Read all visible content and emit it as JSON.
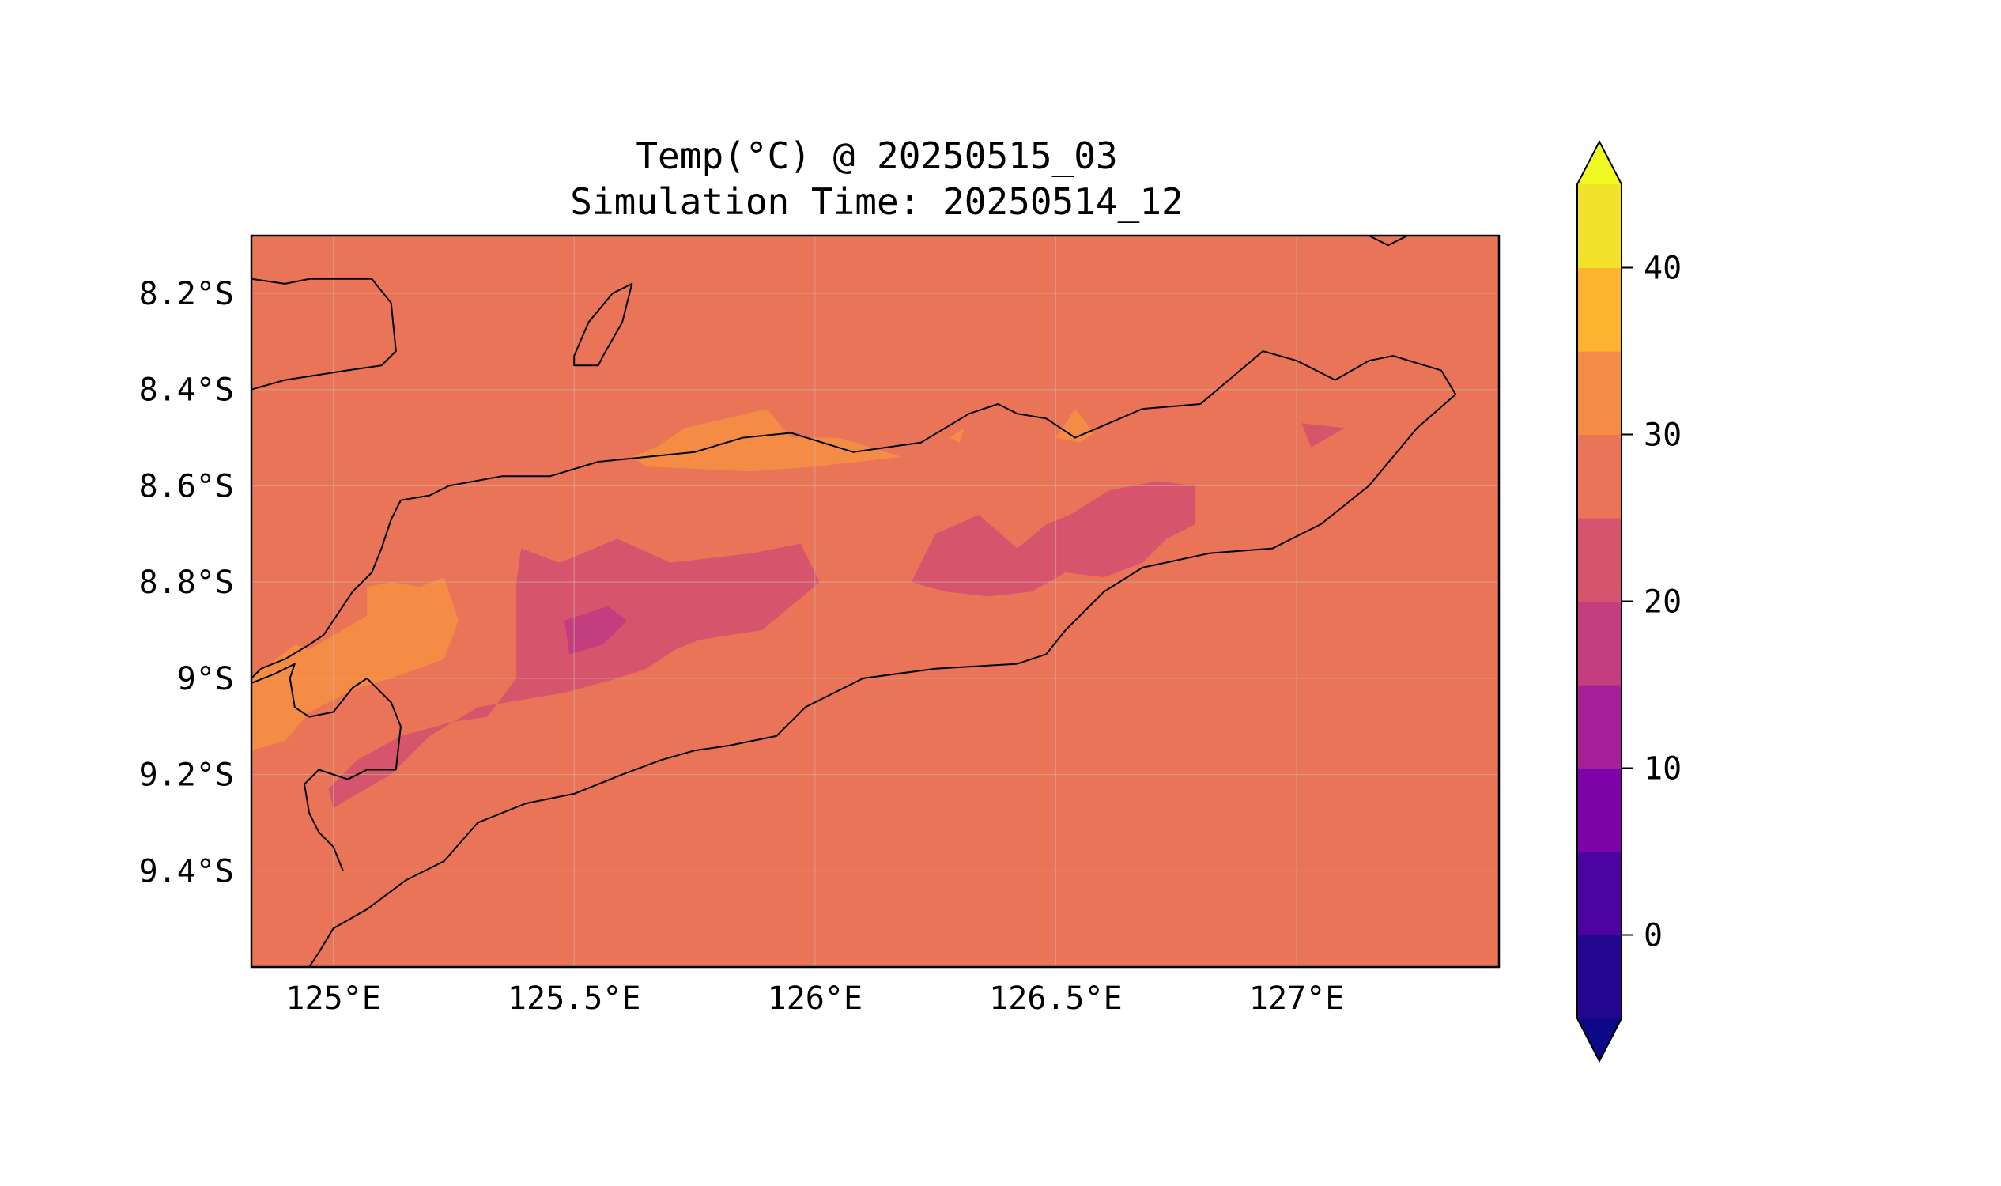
{
  "title": {
    "line1": "Temp(°C) @ 20250515_03",
    "line2": "Simulation Time: 20250514_12"
  },
  "chart_data": {
    "type": "heatmap",
    "variable": "Temp(°C)",
    "valid_time": "20250515_03",
    "simulation_time": "20250514_12",
    "xlim": [
      124.83,
      127.42
    ],
    "ylim": [
      -9.6,
      -8.08
    ],
    "x_ticks": [
      {
        "value": 125.0,
        "label": "125°E"
      },
      {
        "value": 125.5,
        "label": "125.5°E"
      },
      {
        "value": 126.0,
        "label": "126°E"
      },
      {
        "value": 126.5,
        "label": "126.5°E"
      },
      {
        "value": 127.0,
        "label": "127°E"
      }
    ],
    "y_ticks": [
      {
        "value": -8.2,
        "label": "8.2°S"
      },
      {
        "value": -8.4,
        "label": "8.4°S"
      },
      {
        "value": -8.6,
        "label": "8.6°S"
      },
      {
        "value": -8.8,
        "label": "8.8°S"
      },
      {
        "value": -9.0,
        "label": "9°S"
      },
      {
        "value": -9.2,
        "label": "9.2°S"
      },
      {
        "value": -9.4,
        "label": "9.4°S"
      }
    ],
    "grid": true,
    "colorbar": {
      "levels": [
        -5,
        0,
        5,
        10,
        15,
        20,
        25,
        30,
        35,
        40,
        45
      ],
      "colors": [
        "#220690",
        "#4b03a1",
        "#7d03a8",
        "#a51f99",
        "#c43e7f",
        "#d6556d",
        "#ea7457",
        "#f58c46",
        "#fdb32f",
        "#f2e229"
      ],
      "extend_low_color": "#0d0887",
      "extend_high_color": "#f0f921",
      "ticks": [
        {
          "value": 0,
          "label": "0"
        },
        {
          "value": 10,
          "label": "10"
        },
        {
          "value": 20,
          "label": "20"
        },
        {
          "value": 30,
          "label": "30"
        },
        {
          "value": 40,
          "label": "40"
        }
      ],
      "extend": "both"
    },
    "background_level_color": "#ea7457",
    "regions": [
      {
        "level": "30-35",
        "color": "#f58c46",
        "points": [
          [
            124.83,
            -9.0
          ],
          [
            124.92,
            -8.93
          ],
          [
            124.95,
            -8.94
          ],
          [
            125.07,
            -8.87
          ],
          [
            125.07,
            -8.81
          ],
          [
            125.12,
            -8.8
          ],
          [
            125.18,
            -8.81
          ],
          [
            125.23,
            -8.79
          ],
          [
            125.26,
            -8.88
          ],
          [
            125.23,
            -8.96
          ],
          [
            125.12,
            -9.0
          ],
          [
            125.05,
            -9.02
          ],
          [
            124.95,
            -9.07
          ],
          [
            124.9,
            -9.13
          ],
          [
            124.83,
            -9.15
          ]
        ]
      },
      {
        "level": "30-35",
        "color": "#f58c46",
        "points": [
          [
            125.67,
            -8.52
          ],
          [
            125.73,
            -8.48
          ],
          [
            125.9,
            -8.44
          ],
          [
            125.95,
            -8.5
          ],
          [
            126.05,
            -8.5
          ],
          [
            126.18,
            -8.54
          ],
          [
            126.0,
            -8.56
          ],
          [
            125.87,
            -8.57
          ],
          [
            125.65,
            -8.56
          ],
          [
            125.62,
            -8.54
          ]
        ]
      },
      {
        "level": "30-35",
        "color": "#f58c46",
        "points": [
          [
            126.5,
            -8.5
          ],
          [
            126.54,
            -8.44
          ],
          [
            126.58,
            -8.49
          ],
          [
            126.55,
            -8.51
          ]
        ]
      },
      {
        "level": "30-35",
        "color": "#f58c46",
        "points": [
          [
            126.28,
            -8.5
          ],
          [
            126.31,
            -8.48
          ],
          [
            126.3,
            -8.51
          ]
        ]
      },
      {
        "level": "20-25",
        "color": "#d6556d",
        "points": [
          [
            125.39,
            -8.73
          ],
          [
            125.47,
            -8.76
          ],
          [
            125.59,
            -8.71
          ],
          [
            125.7,
            -8.76
          ],
          [
            125.87,
            -8.74
          ],
          [
            125.97,
            -8.72
          ],
          [
            126.01,
            -8.8
          ],
          [
            125.95,
            -8.85
          ],
          [
            125.89,
            -8.9
          ],
          [
            125.76,
            -8.92
          ],
          [
            125.71,
            -8.94
          ],
          [
            125.65,
            -8.98
          ],
          [
            125.59,
            -9.0
          ],
          [
            125.48,
            -9.03
          ],
          [
            125.3,
            -9.06
          ],
          [
            125.2,
            -9.12
          ],
          [
            125.12,
            -9.2
          ],
          [
            125.05,
            -9.24
          ],
          [
            125.0,
            -9.27
          ],
          [
            124.99,
            -9.23
          ],
          [
            125.05,
            -9.17
          ],
          [
            125.14,
            -9.12
          ],
          [
            125.25,
            -9.09
          ],
          [
            125.32,
            -9.08
          ],
          [
            125.38,
            -9.0
          ],
          [
            125.38,
            -8.9
          ],
          [
            125.38,
            -8.8
          ]
        ]
      },
      {
        "level": "20-25",
        "color": "#d6556d",
        "points": [
          [
            126.2,
            -8.8
          ],
          [
            126.25,
            -8.7
          ],
          [
            126.34,
            -8.66
          ],
          [
            126.42,
            -8.73
          ],
          [
            126.48,
            -8.68
          ],
          [
            126.53,
            -8.66
          ],
          [
            126.61,
            -8.61
          ],
          [
            126.71,
            -8.59
          ],
          [
            126.79,
            -8.6
          ],
          [
            126.79,
            -8.68
          ],
          [
            126.73,
            -8.71
          ],
          [
            126.68,
            -8.76
          ],
          [
            126.6,
            -8.79
          ],
          [
            126.52,
            -8.78
          ],
          [
            126.45,
            -8.82
          ],
          [
            126.36,
            -8.83
          ],
          [
            126.27,
            -8.82
          ]
        ]
      },
      {
        "level": "20-25",
        "color": "#d6556d",
        "points": [
          [
            127.01,
            -8.47
          ],
          [
            127.1,
            -8.48
          ],
          [
            127.03,
            -8.52
          ]
        ]
      },
      {
        "level": "15-20",
        "color": "#c43e7f",
        "points": [
          [
            125.48,
            -8.88
          ],
          [
            125.57,
            -8.85
          ],
          [
            125.61,
            -8.88
          ],
          [
            125.56,
            -8.93
          ],
          [
            125.49,
            -8.95
          ]
        ]
      }
    ],
    "coastlines": [
      [
        [
          124.83,
          -8.17
        ],
        [
          124.9,
          -8.18
        ],
        [
          124.95,
          -8.17
        ],
        [
          125.0,
          -8.17
        ],
        [
          125.08,
          -8.17
        ],
        [
          125.12,
          -8.22
        ],
        [
          125.13,
          -8.32
        ],
        [
          125.1,
          -8.35
        ],
        [
          125.03,
          -8.36
        ],
        [
          124.9,
          -8.38
        ],
        [
          124.83,
          -8.4
        ]
      ],
      [
        [
          125.5,
          -8.33
        ],
        [
          125.53,
          -8.26
        ],
        [
          125.58,
          -8.2
        ],
        [
          125.62,
          -8.18
        ],
        [
          125.6,
          -8.26
        ],
        [
          125.56,
          -8.33
        ],
        [
          125.55,
          -8.35
        ],
        [
          125.5,
          -8.35
        ],
        [
          125.5,
          -8.33
        ]
      ],
      [
        [
          127.15,
          -8.08
        ],
        [
          127.19,
          -8.1
        ],
        [
          127.23,
          -8.08
        ]
      ],
      [
        [
          125.02,
          -9.4
        ],
        [
          125.0,
          -9.35
        ],
        [
          124.97,
          -9.32
        ],
        [
          124.95,
          -9.28
        ],
        [
          124.94,
          -9.22
        ],
        [
          124.97,
          -9.19
        ],
        [
          125.03,
          -9.21
        ],
        [
          125.07,
          -9.19
        ],
        [
          125.13,
          -9.19
        ],
        [
          125.14,
          -9.1
        ],
        [
          125.12,
          -9.05
        ],
        [
          125.07,
          -9.0
        ],
        [
          125.04,
          -9.02
        ],
        [
          125.0,
          -9.07
        ],
        [
          124.95,
          -9.08
        ],
        [
          124.92,
          -9.06
        ],
        [
          124.91,
          -9.0
        ],
        [
          124.92,
          -8.97
        ],
        [
          124.88,
          -8.99
        ],
        [
          124.83,
          -9.01
        ]
      ],
      [
        [
          125.08,
          -8.78
        ],
        [
          125.1,
          -8.73
        ],
        [
          125.12,
          -8.67
        ],
        [
          125.14,
          -8.63
        ],
        [
          125.2,
          -8.62
        ],
        [
          125.24,
          -8.6
        ],
        [
          125.35,
          -8.58
        ],
        [
          125.45,
          -8.58
        ],
        [
          125.55,
          -8.55
        ],
        [
          125.65,
          -8.54
        ],
        [
          125.75,
          -8.53
        ],
        [
          125.85,
          -8.5
        ],
        [
          125.95,
          -8.49
        ],
        [
          126.08,
          -8.53
        ],
        [
          126.22,
          -8.51
        ],
        [
          126.32,
          -8.45
        ],
        [
          126.38,
          -8.43
        ],
        [
          126.42,
          -8.45
        ],
        [
          126.48,
          -8.46
        ],
        [
          126.54,
          -8.5
        ],
        [
          126.68,
          -8.44
        ],
        [
          126.8,
          -8.43
        ],
        [
          126.93,
          -8.32
        ],
        [
          127.0,
          -8.34
        ],
        [
          127.08,
          -8.38
        ],
        [
          127.15,
          -8.34
        ],
        [
          127.2,
          -8.33
        ],
        [
          127.3,
          -8.36
        ],
        [
          127.33,
          -8.41
        ],
        [
          127.25,
          -8.48
        ],
        [
          127.15,
          -8.6
        ],
        [
          127.05,
          -8.68
        ],
        [
          126.95,
          -8.73
        ],
        [
          126.82,
          -8.74
        ],
        [
          126.68,
          -8.77
        ],
        [
          126.6,
          -8.82
        ],
        [
          126.52,
          -8.9
        ],
        [
          126.48,
          -8.95
        ],
        [
          126.42,
          -8.97
        ],
        [
          126.25,
          -8.98
        ],
        [
          126.1,
          -9.0
        ],
        [
          125.98,
          -9.06
        ],
        [
          125.92,
          -9.12
        ],
        [
          125.82,
          -9.14
        ],
        [
          125.75,
          -9.15
        ],
        [
          125.68,
          -9.17
        ],
        [
          125.6,
          -9.2
        ],
        [
          125.5,
          -9.24
        ],
        [
          125.4,
          -9.26
        ],
        [
          125.3,
          -9.3
        ],
        [
          125.23,
          -9.38
        ],
        [
          125.15,
          -9.42
        ],
        [
          125.07,
          -9.48
        ],
        [
          125.0,
          -9.52
        ],
        [
          124.97,
          -9.57
        ],
        [
          124.95,
          -9.6
        ]
      ],
      [
        [
          125.08,
          -8.78
        ],
        [
          125.04,
          -8.82
        ],
        [
          125.02,
          -8.85
        ],
        [
          125.0,
          -8.88
        ],
        [
          124.98,
          -8.91
        ],
        [
          124.95,
          -8.93
        ],
        [
          124.9,
          -8.96
        ],
        [
          124.85,
          -8.98
        ],
        [
          124.83,
          -9.0
        ]
      ]
    ]
  }
}
